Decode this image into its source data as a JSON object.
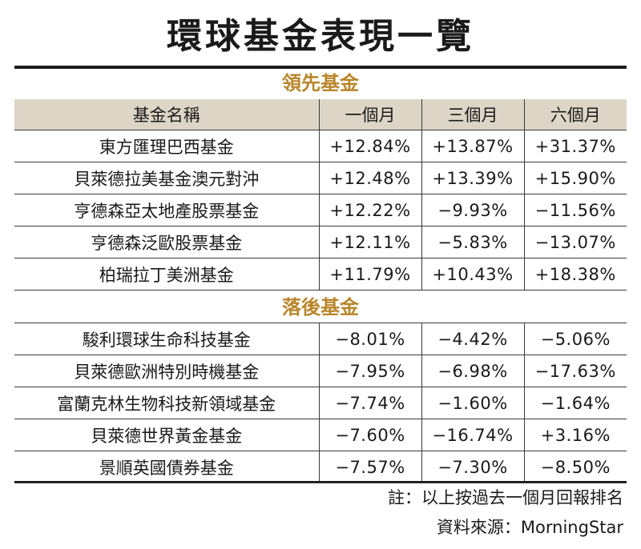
{
  "title": "環球基金表現一覽",
  "leading_section": "領先基金",
  "lagging_section": "落後基金",
  "headers": [
    "基金名稱",
    "一個月",
    "三個月",
    "六個月"
  ],
  "leading_funds": [
    {
      "name": "東方匯理巴西基金",
      "m1": "+12.84%",
      "m3": "+13.87%",
      "m6": "+31.37%"
    },
    {
      "name": "貝萊德拉美基金澳元對沖",
      "m1": "+12.48%",
      "m3": "+13.39%",
      "m6": "+15.90%"
    },
    {
      "name": "亨德森亞太地產股票基金",
      "m1": "+12.22%",
      "m3": "−9.93%",
      "m6": "−11.56%"
    },
    {
      "name": "亨德森泛歐股票基金",
      "m1": "+12.11%",
      "m3": "−5.83%",
      "m6": "−13.07%"
    },
    {
      "name": "柏瑞拉丁美洲基金",
      "m1": "+11.79%",
      "m3": "+10.43%",
      "m6": "+18.38%"
    }
  ],
  "lagging_funds": [
    {
      "name": "駿利環球生命科技基金",
      "m1": "−8.01%",
      "m3": "−4.42%",
      "m6": "−5.06%"
    },
    {
      "name": "貝萊德歐洲特別時機基金",
      "m1": "−7.95%",
      "m3": "−6.98%",
      "m6": "−17.63%"
    },
    {
      "name": "富蘭克林生物科技新領域基金",
      "m1": "−7.74%",
      "m3": "−1.60%",
      "m6": "−1.64%"
    },
    {
      "name": "貝萊德世界黃金基金",
      "m1": "−7.60%",
      "m3": "−16.74%",
      "m6": "+3.16%"
    },
    {
      "name": "景順英國債券基金",
      "m1": "−7.57%",
      "m3": "−7.30%",
      "m6": "−8.50%"
    }
  ],
  "note": "註：以上按過去一個月回報排名",
  "source": "資料來源：MorningStar",
  "colors": {
    "section_gold": "#b8862b",
    "header_bg": "#ddd6c6"
  }
}
